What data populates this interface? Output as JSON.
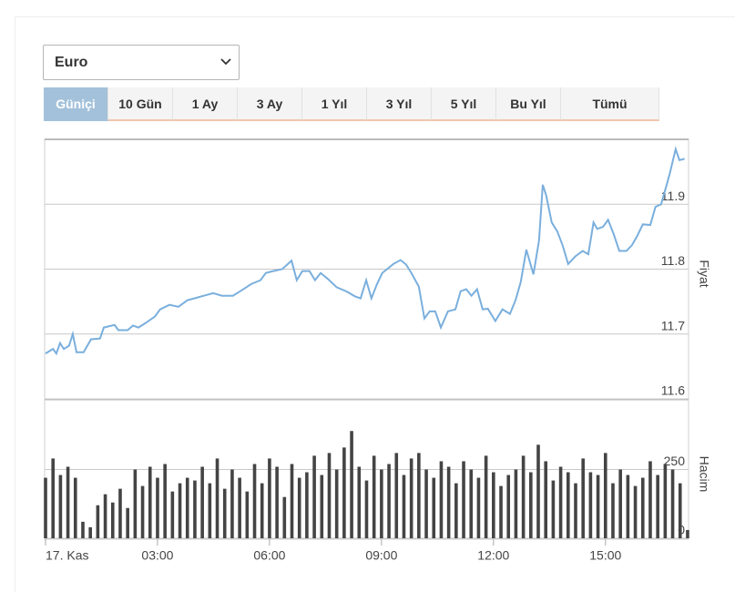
{
  "dropdown": {
    "value": "Euro"
  },
  "tabs": {
    "labels": [
      "Güniçi",
      "10 Gün",
      "1 Ay",
      "3 Ay",
      "1 Yıl",
      "3 Yıl",
      "5 Yıl",
      "Bu Yıl",
      "Tümü"
    ],
    "active": 0
  },
  "chart_data": [
    {
      "type": "line",
      "ylabel": "Fiyat",
      "color": "#7aafdd",
      "grid": true,
      "xlim": [
        0,
        17.25
      ],
      "ylim": [
        11.6,
        12.0
      ],
      "yticks": [
        11.6,
        11.7,
        11.8,
        11.9
      ],
      "x": [
        0,
        0.2,
        0.29,
        0.39,
        0.49,
        0.63,
        0.73,
        0.83,
        1.02,
        1.22,
        1.46,
        1.56,
        1.85,
        1.95,
        2.2,
        2.34,
        2.49,
        2.68,
        2.93,
        3.07,
        3.32,
        3.56,
        3.8,
        4.05,
        4.24,
        4.49,
        4.73,
        5.02,
        5.27,
        5.51,
        5.76,
        5.9,
        6.1,
        6.34,
        6.59,
        6.73,
        6.88,
        7.07,
        7.22,
        7.37,
        7.56,
        7.8,
        8.05,
        8.29,
        8.44,
        8.59,
        8.73,
        8.88,
        9.02,
        9.32,
        9.51,
        9.66,
        9.8,
        10,
        10.15,
        10.29,
        10.44,
        10.59,
        10.78,
        10.98,
        11.12,
        11.27,
        11.41,
        11.56,
        11.71,
        11.85,
        12.05,
        12.24,
        12.44,
        12.59,
        12.73,
        12.88,
        13.07,
        13.22,
        13.32,
        13.41,
        13.56,
        13.71,
        13.85,
        14,
        14.2,
        14.39,
        14.54,
        14.68,
        14.78,
        14.93,
        15.07,
        15.22,
        15.37,
        15.56,
        15.71,
        15.85,
        16,
        16.2,
        16.34,
        16.49,
        16.63,
        16.73,
        16.88,
        16.98,
        17.12
      ],
      "values": [
        11.67,
        11.677,
        11.67,
        11.686,
        11.677,
        11.682,
        11.7,
        11.672,
        11.672,
        11.692,
        11.693,
        11.71,
        11.714,
        11.706,
        11.706,
        11.713,
        11.71,
        11.717,
        11.727,
        11.738,
        11.745,
        11.742,
        11.752,
        11.756,
        11.759,
        11.763,
        11.759,
        11.759,
        11.768,
        11.777,
        11.783,
        11.794,
        11.797,
        11.8,
        11.813,
        11.783,
        11.797,
        11.797,
        11.783,
        11.794,
        11.785,
        11.772,
        11.766,
        11.758,
        11.755,
        11.783,
        11.755,
        11.777,
        11.794,
        11.808,
        11.814,
        11.807,
        11.794,
        11.773,
        11.724,
        11.735,
        11.735,
        11.71,
        11.735,
        11.738,
        11.766,
        11.769,
        11.759,
        11.769,
        11.738,
        11.739,
        11.72,
        11.738,
        11.731,
        11.752,
        11.78,
        11.83,
        11.792,
        11.844,
        11.93,
        11.914,
        11.872,
        11.858,
        11.837,
        11.808,
        11.82,
        11.828,
        11.823,
        11.872,
        11.862,
        11.865,
        11.876,
        11.854,
        11.828,
        11.828,
        11.837,
        11.851,
        11.869,
        11.868,
        11.896,
        11.9,
        11.928,
        11.949,
        11.985,
        11.968,
        11.97
      ]
    },
    {
      "type": "bar",
      "ylabel": "Hacim",
      "color": "#444444",
      "grid": true,
      "xlim": [
        0,
        17.25
      ],
      "ylim": [
        0,
        500
      ],
      "yticks": [
        0,
        250
      ],
      "xticks": [
        {
          "value": 0,
          "label": "17. Kas"
        },
        {
          "value": 3,
          "label": "03:00"
        },
        {
          "value": 6,
          "label": "06:00"
        },
        {
          "value": 9,
          "label": "09:00"
        },
        {
          "value": 12,
          "label": "12:00"
        },
        {
          "value": 15,
          "label": "15:00"
        }
      ],
      "x": [
        0,
        0.2,
        0.4,
        0.6,
        0.8,
        1,
        1.2,
        1.4,
        1.6,
        1.8,
        2,
        2.2,
        2.4,
        2.6,
        2.8,
        3,
        3.2,
        3.4,
        3.6,
        3.8,
        4,
        4.2,
        4.4,
        4.6,
        4.8,
        5,
        5.2,
        5.4,
        5.6,
        5.8,
        6,
        6.2,
        6.4,
        6.6,
        6.8,
        7,
        7.2,
        7.4,
        7.6,
        7.8,
        8,
        8.2,
        8.4,
        8.6,
        8.8,
        9,
        9.2,
        9.4,
        9.6,
        9.8,
        10,
        10.2,
        10.4,
        10.6,
        10.8,
        11,
        11.2,
        11.4,
        11.6,
        11.8,
        12,
        12.2,
        12.4,
        12.6,
        12.8,
        13,
        13.2,
        13.4,
        13.6,
        13.8,
        14,
        14.2,
        14.4,
        14.6,
        14.8,
        15,
        15.2,
        15.4,
        15.6,
        15.8,
        16,
        16.2,
        16.4,
        16.6,
        16.8,
        17,
        17.2
      ],
      "values": [
        220,
        290,
        230,
        260,
        220,
        60,
        40,
        120,
        160,
        130,
        180,
        110,
        250,
        190,
        260,
        220,
        270,
        170,
        200,
        220,
        210,
        260,
        200,
        290,
        180,
        250,
        220,
        170,
        270,
        200,
        290,
        260,
        150,
        270,
        220,
        240,
        300,
        230,
        310,
        250,
        330,
        390,
        260,
        210,
        300,
        250,
        270,
        310,
        230,
        290,
        310,
        250,
        220,
        280,
        260,
        200,
        280,
        250,
        220,
        300,
        240,
        190,
        230,
        250,
        300,
        240,
        340,
        280,
        210,
        260,
        240,
        200,
        290,
        240,
        230,
        310,
        200,
        250,
        230,
        190,
        220,
        280,
        230,
        270,
        250,
        200,
        30
      ]
    }
  ]
}
